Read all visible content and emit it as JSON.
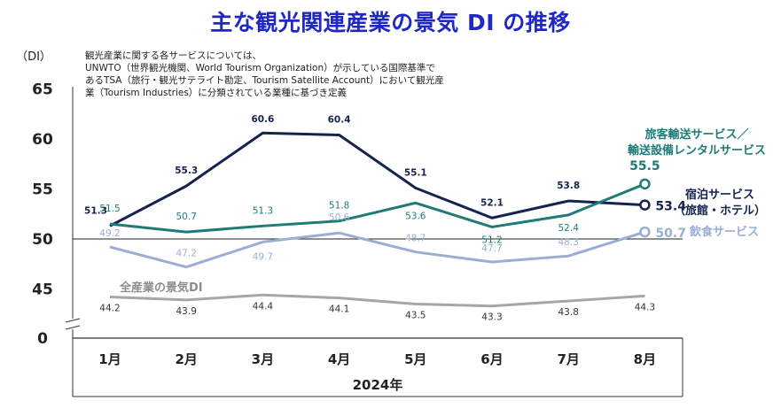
{
  "chart_data": {
    "type": "line",
    "title": "主な観光関連産業の景気 DI の推移",
    "ylabel": "（DI）",
    "xlabel": "2024年",
    "categories": [
      "1月",
      "2月",
      "3月",
      "4月",
      "5月",
      "6月",
      "7月",
      "8月"
    ],
    "y_ticks": [
      "65",
      "60",
      "55",
      "50",
      "45",
      "0"
    ],
    "ylim": [
      40,
      65
    ],
    "axis_break": true,
    "series": [
      {
        "name": "宿泊サービス",
        "name_sub": "（旅館・ホテル）",
        "values": [
          51.3,
          55.3,
          60.6,
          60.4,
          55.1,
          52.1,
          53.8,
          53.4
        ],
        "labels": [
          "51.3",
          "55.3",
          "60.6",
          "60.4",
          "55.1",
          "52.1",
          "53.8",
          "53.4"
        ],
        "color": "#14234f"
      },
      {
        "name": "旅客輸送サービス／",
        "name_sub": "輸送設備レンタルサービス",
        "values": [
          51.5,
          50.7,
          51.3,
          51.8,
          53.6,
          51.2,
          52.4,
          55.5
        ],
        "labels": [
          "51.5",
          "50.7",
          "51.3",
          "51.8",
          "53.6",
          "51.2",
          "52.4",
          "55.5"
        ],
        "color": "#1e7b78"
      },
      {
        "name": "飲食サービス",
        "name_sub": "",
        "values": [
          49.2,
          47.2,
          49.7,
          50.6,
          48.7,
          47.7,
          48.3,
          50.7
        ],
        "labels": [
          "49.2",
          "47.2",
          "49.7",
          "50.6",
          "48.7",
          "47.7",
          "48.3",
          "50.7"
        ],
        "color": "#9aaed5"
      },
      {
        "name": "全産業の景気DI",
        "name_sub": "",
        "values": [
          44.2,
          43.9,
          44.4,
          44.1,
          43.5,
          43.3,
          43.8,
          44.3
        ],
        "labels": [
          "44.2",
          "43.9",
          "44.4",
          "44.1",
          "43.5",
          "43.3",
          "43.8",
          "44.3"
        ],
        "color": "#a6a6a6"
      }
    ],
    "reference_line": 50,
    "note": [
      "観光産業に関する各サービスについては、",
      "UNWTO（世界観光機関、World Tourism Organization）が示している国際基準で",
      "あるTSA（旅行・観光サテライト勘定、Tourism Satellite Account）において観光産",
      "業（Tourism Industries）に分類されている業種に基づき定義"
    ]
  }
}
